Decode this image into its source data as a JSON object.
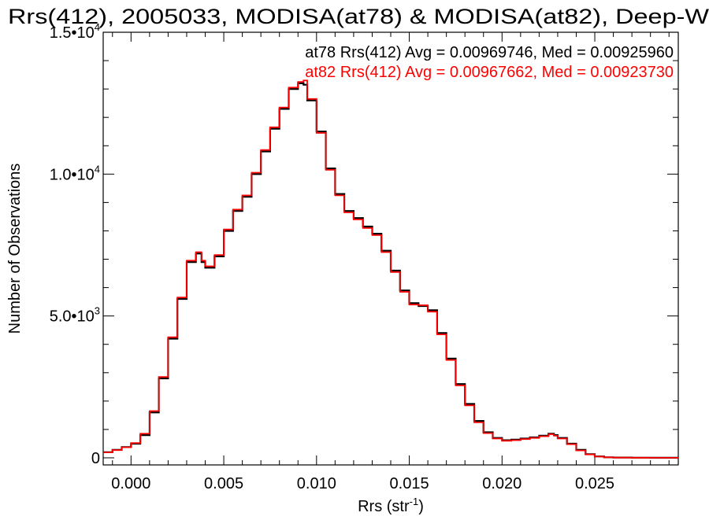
{
  "chart_data": {
    "type": "line",
    "title": "Rrs(412), 2005033, MODISA(at78) & MODISA(at82), Deep-W",
    "xlabel": "Rrs (str",
    "xlabel_sup": "-1",
    "xlabel_close": ")",
    "ylabel": "Number of Observations",
    "xlim": [
      -0.0015,
      0.0295
    ],
    "ylim": [
      -250,
      15000
    ],
    "x_ticks": [
      {
        "value": 0.0,
        "label": "0.000"
      },
      {
        "value": 0.005,
        "label": "0.005"
      },
      {
        "value": 0.01,
        "label": "0.010"
      },
      {
        "value": 0.015,
        "label": "0.015"
      },
      {
        "value": 0.02,
        "label": "0.020"
      },
      {
        "value": 0.025,
        "label": "0.025"
      }
    ],
    "y_ticks": [
      {
        "value": 0,
        "label": "0",
        "sup": ""
      },
      {
        "value": 5000,
        "label": "5.0•10",
        "sup": "3"
      },
      {
        "value": 10000,
        "label": "1.0•10",
        "sup": "4"
      },
      {
        "value": 15000,
        "label": "1.5•10",
        "sup": "4"
      }
    ],
    "annotations": [
      {
        "text": "at78 Rrs(412) Avg = 0.00969746, Med = 0.00925960",
        "color": "#000000"
      },
      {
        "text": "at82 Rrs(412) Avg = 0.00967662, Med = 0.00923730",
        "color": "#ff0000"
      }
    ],
    "series": [
      {
        "color": "#000000",
        "x": [
          -0.0015,
          -0.001,
          -0.0005,
          0.0,
          0.0005,
          0.001,
          0.0015,
          0.002,
          0.0025,
          0.003,
          0.0035,
          0.0038,
          0.004,
          0.0045,
          0.005,
          0.0055,
          0.006,
          0.0065,
          0.007,
          0.0075,
          0.008,
          0.0085,
          0.009,
          0.0093,
          0.0095,
          0.01,
          0.0105,
          0.011,
          0.0115,
          0.012,
          0.0125,
          0.013,
          0.0135,
          0.014,
          0.0145,
          0.015,
          0.0155,
          0.016,
          0.0165,
          0.017,
          0.0175,
          0.018,
          0.0185,
          0.019,
          0.0195,
          0.02,
          0.0205,
          0.021,
          0.0215,
          0.022,
          0.0225,
          0.0228,
          0.023,
          0.0235,
          0.024,
          0.0245,
          0.025,
          0.0255,
          0.026,
          0.027,
          0.028,
          0.029,
          0.0295
        ],
        "y": [
          200,
          280,
          380,
          500,
          800,
          1600,
          2800,
          4200,
          5600,
          6900,
          7200,
          6900,
          6700,
          7100,
          8000,
          8700,
          9200,
          10000,
          10800,
          11600,
          12300,
          13000,
          13200,
          13150,
          12600,
          11500,
          10200,
          9300,
          8700,
          8450,
          8150,
          7900,
          7300,
          6600,
          5900,
          5450,
          5350,
          5200,
          4400,
          3500,
          2600,
          1900,
          1300,
          900,
          700,
          620,
          640,
          680,
          720,
          780,
          850,
          800,
          700,
          500,
          280,
          130,
          50,
          20,
          10,
          5,
          3,
          2,
          2
        ]
      },
      {
        "color": "#ff0000",
        "x": [
          -0.0015,
          -0.001,
          -0.0005,
          0.0,
          0.0005,
          0.001,
          0.0015,
          0.002,
          0.0025,
          0.003,
          0.0035,
          0.0038,
          0.004,
          0.0045,
          0.005,
          0.0055,
          0.006,
          0.0065,
          0.007,
          0.0075,
          0.008,
          0.0085,
          0.009,
          0.0093,
          0.0095,
          0.01,
          0.0105,
          0.011,
          0.0115,
          0.012,
          0.0125,
          0.013,
          0.0135,
          0.014,
          0.0145,
          0.015,
          0.0155,
          0.016,
          0.0165,
          0.017,
          0.0175,
          0.018,
          0.0185,
          0.019,
          0.0195,
          0.02,
          0.0205,
          0.021,
          0.0215,
          0.022,
          0.0225,
          0.0228,
          0.023,
          0.0235,
          0.024,
          0.0245,
          0.025,
          0.0255,
          0.026,
          0.027,
          0.028,
          0.029,
          0.0295
        ],
        "y": [
          190,
          270,
          370,
          520,
          850,
          1650,
          2850,
          4250,
          5650,
          6950,
          7250,
          6950,
          6750,
          7150,
          8050,
          8750,
          9250,
          10050,
          10850,
          11650,
          12350,
          13050,
          13250,
          13300,
          12650,
          11450,
          10150,
          9250,
          8650,
          8400,
          8100,
          7850,
          7250,
          6550,
          5850,
          5400,
          5380,
          5150,
          4350,
          3450,
          2550,
          1850,
          1250,
          870,
          680,
          600,
          620,
          660,
          700,
          760,
          830,
          780,
          680,
          480,
          260,
          120,
          45,
          18,
          9,
          5,
          3,
          2,
          2
        ]
      }
    ],
    "grid": false
  }
}
